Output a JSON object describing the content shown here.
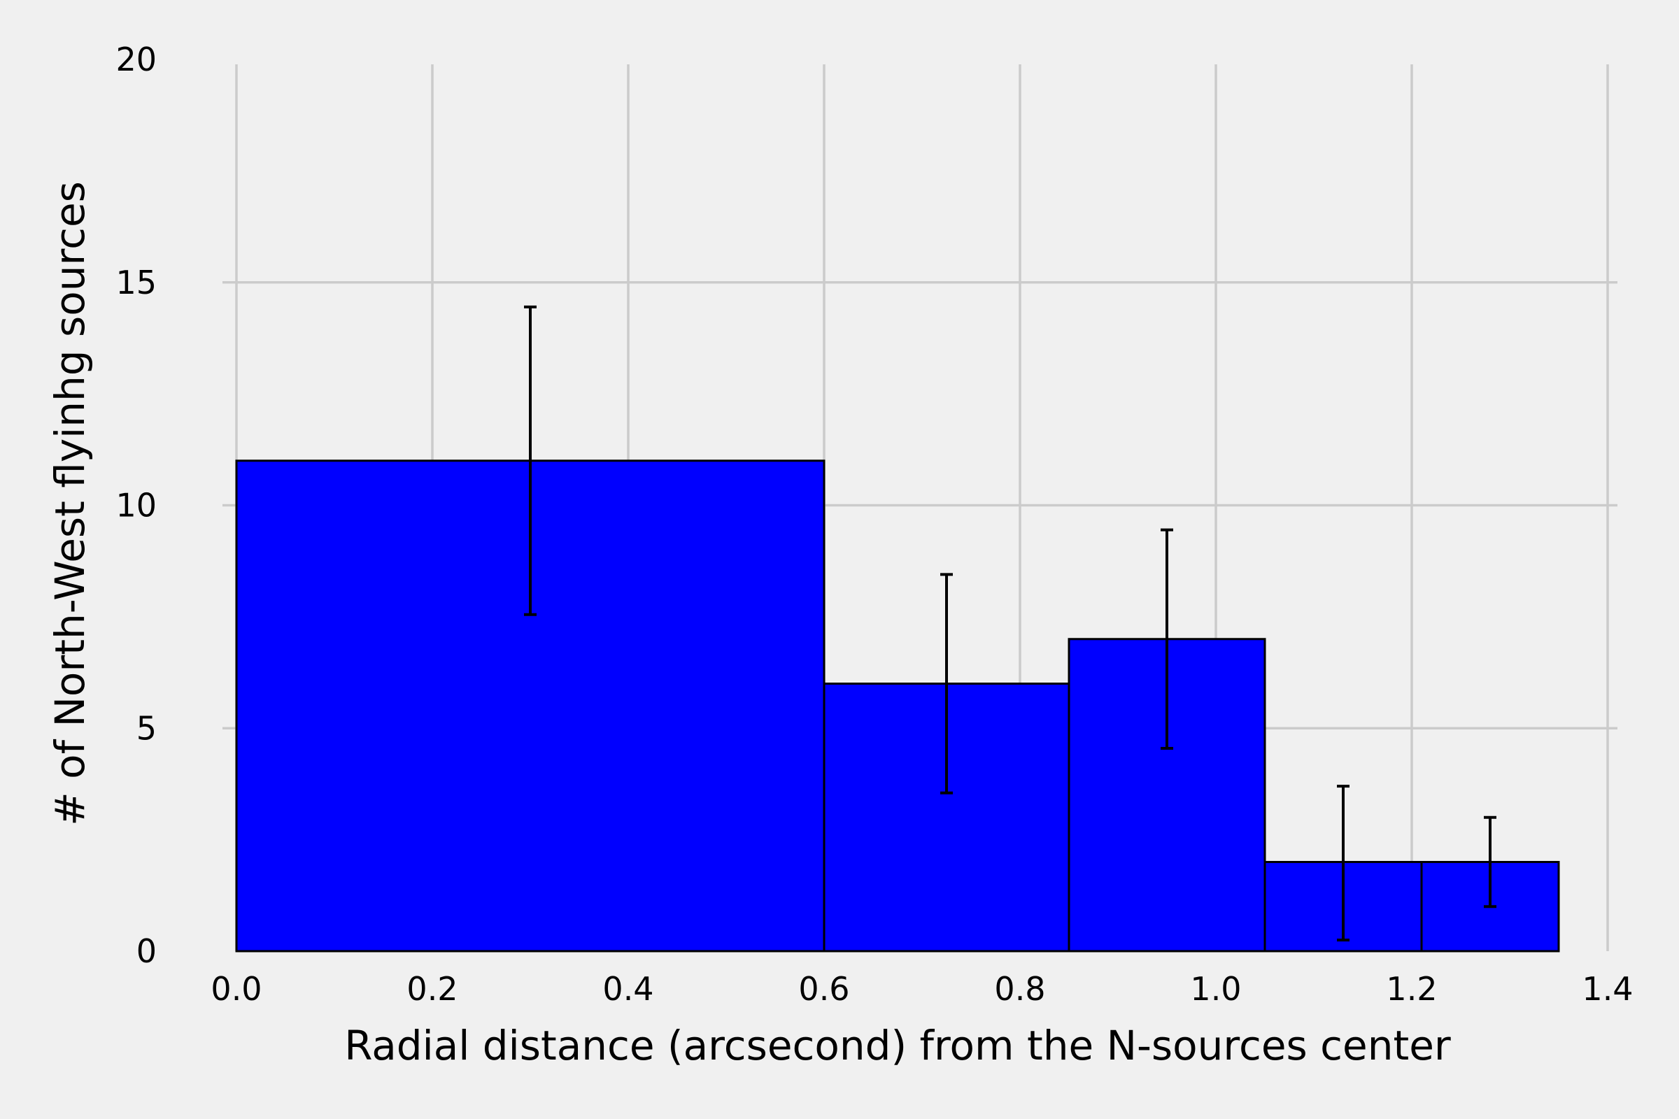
{
  "chart_data": {
    "type": "bar",
    "title": "",
    "xlabel": "Radial distance (arcsecond) from the N-sources center",
    "ylabel": "# of North-West flyinhg sources",
    "xlim": [
      0.0,
      1.4
    ],
    "ylim": [
      0,
      20
    ],
    "x_ticks": [
      "0.0",
      "0.2",
      "0.4",
      "0.6",
      "0.8",
      "1.0",
      "1.2",
      "1.4"
    ],
    "y_ticks": [
      "0",
      "5",
      "10",
      "15",
      "20"
    ],
    "grid": true,
    "bin_edges": [
      0.0,
      0.6,
      0.85,
      1.05,
      1.21,
      1.35
    ],
    "values": [
      11,
      6,
      7,
      2,
      2
    ],
    "errorbars": [
      {
        "x": 0.3,
        "low": 7.55,
        "high": 14.45
      },
      {
        "x": 0.725,
        "low": 3.55,
        "high": 8.45
      },
      {
        "x": 0.95,
        "low": 4.55,
        "high": 9.45
      },
      {
        "x": 1.13,
        "low": 0.25,
        "high": 3.7
      },
      {
        "x": 1.28,
        "low": 1.0,
        "high": 3.0
      }
    ],
    "colors": {
      "bar": "#0000ff",
      "edge": "#000000",
      "grid": "#cbcbcb",
      "background": "#f0f0f0"
    }
  }
}
